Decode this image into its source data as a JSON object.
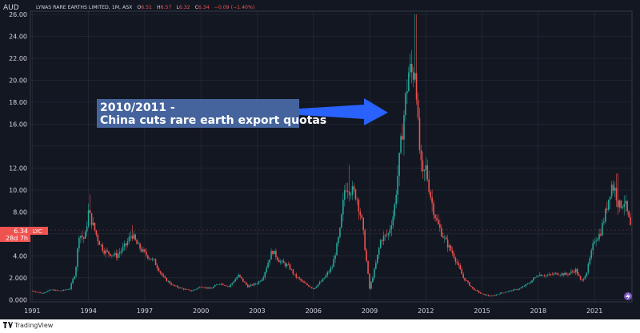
{
  "header": {
    "currency": "AUD",
    "symbol_line": "LYNAS RARE EARTHS LIMITED, 1M, ASX",
    "ohlc": [
      {
        "k": "O",
        "v": "6.51"
      },
      {
        "k": "H",
        "v": "6.57"
      },
      {
        "k": "L",
        "v": "6.32"
      },
      {
        "k": "C",
        "v": "6.34"
      }
    ],
    "change": "−0.09 (−1.40%)"
  },
  "price_badge": {
    "price": "6.34",
    "ticker": "LYC",
    "countdown": "28d 7h"
  },
  "annotation": {
    "line1": "2010/2011 -",
    "line2": "China cuts rare earth export quotas"
  },
  "footer": {
    "brand": "TradingView"
  },
  "colors": {
    "up": "#26a69a",
    "down": "#ef5350",
    "bg": "#131722",
    "grid": "#2a2e39",
    "axis_text": "#d1d4dc",
    "annotation_bg": "#4a6ba8",
    "arrow": "#2962ff",
    "badge": "#ef5350"
  },
  "chart_data": {
    "type": "candlestick",
    "interval": "1M",
    "x_range": [
      1990.9,
      2023.0
    ],
    "y_range": [
      -0.2,
      26.3
    ],
    "x_ticks": [
      {
        "v": 1991,
        "label": "1991"
      },
      {
        "v": 1994,
        "label": "1994"
      },
      {
        "v": 1997,
        "label": "1997"
      },
      {
        "v": 2000,
        "label": "2000"
      },
      {
        "v": 2003,
        "label": "2003"
      },
      {
        "v": 2006,
        "label": "2006"
      },
      {
        "v": 2009,
        "label": "2009"
      },
      {
        "v": 2012,
        "label": "2012"
      },
      {
        "v": 2015,
        "label": "2015"
      },
      {
        "v": 2018,
        "label": "2018"
      },
      {
        "v": 2021,
        "label": "2021"
      }
    ],
    "y_ticks": [
      {
        "v": 0,
        "label": "0.000"
      },
      {
        "v": 2,
        "label": "2.000"
      },
      {
        "v": 4,
        "label": "4.00"
      },
      {
        "v": 8,
        "label": "8.00"
      },
      {
        "v": 10,
        "label": "10.00"
      },
      {
        "v": 12,
        "label": "12.00"
      },
      {
        "v": 16,
        "label": "16.00"
      },
      {
        "v": 18,
        "label": "18.00"
      },
      {
        "v": 20,
        "label": "20.00"
      },
      {
        "v": 22,
        "label": "22.00"
      },
      {
        "v": 24,
        "label": "24.00"
      },
      {
        "v": 26,
        "label": "26.00"
      }
    ],
    "approx_close_path": [
      [
        1991.0,
        0.8
      ],
      [
        1991.5,
        0.6
      ],
      [
        1992.0,
        0.9
      ],
      [
        1992.5,
        0.8
      ],
      [
        1993.0,
        1.0
      ],
      [
        1993.3,
        2.5
      ],
      [
        1993.5,
        6.0
      ],
      [
        1993.8,
        5.5
      ],
      [
        1994.0,
        8.0
      ],
      [
        1994.2,
        7.0
      ],
      [
        1994.5,
        5.5
      ],
      [
        1994.8,
        4.5
      ],
      [
        1995.0,
        4.3
      ],
      [
        1995.5,
        4.0
      ],
      [
        1996.0,
        5.0
      ],
      [
        1996.3,
        6.0
      ],
      [
        1996.6,
        5.0
      ],
      [
        1997.0,
        4.2
      ],
      [
        1997.5,
        3.5
      ],
      [
        1998.0,
        2.0
      ],
      [
        1998.5,
        1.3
      ],
      [
        1999.0,
        1.0
      ],
      [
        1999.5,
        0.8
      ],
      [
        2000.0,
        1.2
      ],
      [
        2000.5,
        1.0
      ],
      [
        2001.0,
        1.5
      ],
      [
        2001.5,
        1.2
      ],
      [
        2002.0,
        2.2
      ],
      [
        2002.5,
        1.2
      ],
      [
        2003.0,
        1.5
      ],
      [
        2003.3,
        2.0
      ],
      [
        2003.8,
        4.5
      ],
      [
        2004.2,
        3.5
      ],
      [
        2004.7,
        3.0
      ],
      [
        2005.0,
        2.2
      ],
      [
        2005.5,
        1.5
      ],
      [
        2006.0,
        1.0
      ],
      [
        2006.5,
        1.8
      ],
      [
        2007.0,
        3.0
      ],
      [
        2007.4,
        6.0
      ],
      [
        2007.7,
        10.5
      ],
      [
        2008.0,
        10.0
      ],
      [
        2008.3,
        9.5
      ],
      [
        2008.6,
        7.0
      ],
      [
        2008.8,
        4.0
      ],
      [
        2009.0,
        1.0
      ],
      [
        2009.3,
        3.0
      ],
      [
        2009.6,
        5.5
      ],
      [
        2010.0,
        6.0
      ],
      [
        2010.3,
        8.0
      ],
      [
        2010.6,
        13.0
      ],
      [
        2010.9,
        18.0
      ],
      [
        2011.1,
        21.0
      ],
      [
        2011.3,
        20.5
      ],
      [
        2011.45,
        21.5
      ],
      [
        2011.6,
        15.0
      ],
      [
        2011.8,
        11.0
      ],
      [
        2012.0,
        12.0
      ],
      [
        2012.3,
        9.0
      ],
      [
        2012.6,
        7.0
      ],
      [
        2013.0,
        5.5
      ],
      [
        2013.5,
        4.0
      ],
      [
        2014.0,
        2.0
      ],
      [
        2014.5,
        1.0
      ],
      [
        2015.0,
        0.5
      ],
      [
        2015.5,
        0.3
      ],
      [
        2016.0,
        0.6
      ],
      [
        2016.5,
        0.8
      ],
      [
        2017.0,
        1.0
      ],
      [
        2017.5,
        1.5
      ],
      [
        2018.0,
        2.3
      ],
      [
        2018.5,
        2.2
      ],
      [
        2019.0,
        2.4
      ],
      [
        2019.5,
        2.3
      ],
      [
        2020.0,
        2.7
      ],
      [
        2020.3,
        1.6
      ],
      [
        2020.6,
        2.6
      ],
      [
        2021.0,
        5.5
      ],
      [
        2021.3,
        6.0
      ],
      [
        2021.6,
        8.0
      ],
      [
        2021.9,
        10.5
      ],
      [
        2022.1,
        10.0
      ],
      [
        2022.3,
        8.5
      ],
      [
        2022.6,
        9.0
      ],
      [
        2022.8,
        7.5
      ],
      [
        2022.95,
        6.34
      ]
    ],
    "spikes": [
      [
        1994.1,
        9.6
      ],
      [
        1996.3,
        6.8
      ],
      [
        2007.9,
        12.3
      ],
      [
        2011.45,
        26.0
      ],
      [
        2011.85,
        13.5
      ],
      [
        2022.2,
        11.5
      ]
    ]
  }
}
